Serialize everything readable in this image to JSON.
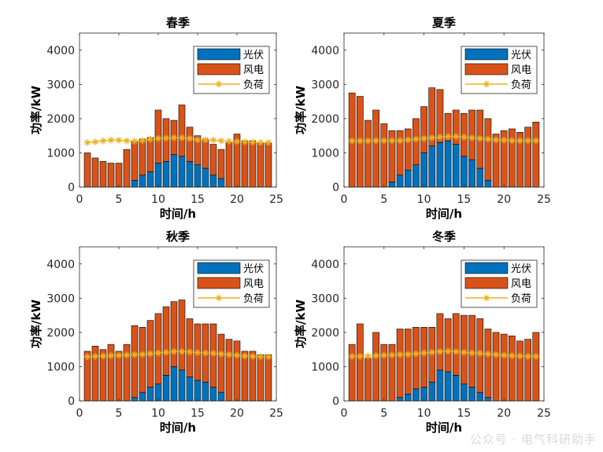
{
  "chart_data": [
    {
      "type": "bar",
      "title": "春季",
      "xlabel": "时间/h",
      "ylabel": "功率/kW",
      "xlim": [
        0,
        25
      ],
      "ylim": [
        0,
        4500
      ],
      "xticks": [
        0,
        5,
        10,
        15,
        20,
        25
      ],
      "yticks": [
        0,
        1000,
        2000,
        3000,
        4000
      ],
      "legend": "top-right",
      "x": [
        1,
        2,
        3,
        4,
        5,
        6,
        7,
        8,
        9,
        10,
        11,
        12,
        13,
        14,
        15,
        16,
        17,
        18,
        19,
        20,
        21,
        22,
        23,
        24
      ],
      "series": [
        {
          "name": "光伏",
          "kind": "stacked-bar",
          "color": "#0072BD",
          "values": [
            0,
            0,
            0,
            0,
            0,
            0,
            200,
            350,
            450,
            700,
            750,
            950,
            900,
            750,
            650,
            550,
            350,
            250,
            0,
            0,
            0,
            0,
            0,
            0
          ]
        },
        {
          "name": "风电",
          "kind": "stacked-bar",
          "color": "#D95319",
          "values": [
            1000,
            850,
            750,
            700,
            700,
            1100,
            1150,
            1050,
            1000,
            1550,
            1250,
            1000,
            1500,
            1000,
            850,
            850,
            900,
            850,
            1300,
            1550,
            1350,
            1350,
            1300,
            1300
          ]
        },
        {
          "name": "负荷",
          "kind": "line",
          "color": "#EDB120",
          "marker": "star",
          "values": [
            1300,
            1320,
            1350,
            1370,
            1370,
            1350,
            1340,
            1360,
            1400,
            1420,
            1430,
            1440,
            1440,
            1420,
            1380,
            1380,
            1370,
            1350,
            1340,
            1330,
            1320,
            1310,
            1300,
            1300
          ]
        }
      ]
    },
    {
      "type": "bar",
      "title": "夏季",
      "xlabel": "时间/h",
      "ylabel": "功率/kW",
      "xlim": [
        0,
        25
      ],
      "ylim": [
        0,
        4500
      ],
      "xticks": [
        0,
        5,
        10,
        15,
        20,
        25
      ],
      "yticks": [
        0,
        1000,
        2000,
        3000,
        4000
      ],
      "legend": "top-right",
      "x": [
        1,
        2,
        3,
        4,
        5,
        6,
        7,
        8,
        9,
        10,
        11,
        12,
        13,
        14,
        15,
        16,
        17,
        18,
        19,
        20,
        21,
        22,
        23,
        24
      ],
      "series": [
        {
          "name": "光伏",
          "kind": "stacked-bar",
          "color": "#0072BD",
          "values": [
            0,
            0,
            0,
            0,
            0,
            150,
            350,
            500,
            650,
            1000,
            1200,
            1300,
            1350,
            1250,
            900,
            800,
            550,
            200,
            0,
            0,
            0,
            0,
            0,
            0
          ]
        },
        {
          "name": "风电",
          "kind": "stacked-bar",
          "color": "#D95319",
          "values": [
            2750,
            2650,
            1950,
            2250,
            1850,
            1500,
            1300,
            1200,
            1350,
            1350,
            1700,
            1550,
            800,
            1000,
            1250,
            1450,
            1700,
            1800,
            1550,
            1650,
            1700,
            1600,
            1750,
            1900
          ]
        },
        {
          "name": "负荷",
          "kind": "line",
          "color": "#EDB120",
          "marker": "star",
          "values": [
            1350,
            1350,
            1350,
            1360,
            1360,
            1360,
            1360,
            1380,
            1400,
            1420,
            1440,
            1460,
            1480,
            1480,
            1460,
            1440,
            1420,
            1400,
            1380,
            1370,
            1360,
            1360,
            1360,
            1360
          ]
        }
      ]
    },
    {
      "type": "bar",
      "title": "秋季",
      "xlabel": "时间/h",
      "ylabel": "功率/kW",
      "xlim": [
        0,
        25
      ],
      "ylim": [
        0,
        4500
      ],
      "xticks": [
        0,
        5,
        10,
        15,
        20,
        25
      ],
      "yticks": [
        0,
        1000,
        2000,
        3000,
        4000
      ],
      "legend": "top-right",
      "x": [
        1,
        2,
        3,
        4,
        5,
        6,
        7,
        8,
        9,
        10,
        11,
        12,
        13,
        14,
        15,
        16,
        17,
        18,
        19,
        20,
        21,
        22,
        23,
        24
      ],
      "series": [
        {
          "name": "光伏",
          "kind": "stacked-bar",
          "color": "#0072BD",
          "values": [
            0,
            0,
            0,
            0,
            0,
            0,
            100,
            250,
            400,
            500,
            750,
            1000,
            900,
            700,
            600,
            550,
            400,
            250,
            0,
            0,
            0,
            0,
            0,
            0
          ]
        },
        {
          "name": "风电",
          "kind": "stacked-bar",
          "color": "#D95319",
          "values": [
            1450,
            1600,
            1500,
            1650,
            1450,
            1650,
            2100,
            1900,
            1950,
            2050,
            2000,
            1900,
            2050,
            1700,
            1650,
            1700,
            1850,
            1700,
            1800,
            1750,
            1450,
            1450,
            1350,
            1350
          ]
        },
        {
          "name": "负荷",
          "kind": "line",
          "color": "#EDB120",
          "marker": "star",
          "values": [
            1290,
            1300,
            1310,
            1320,
            1330,
            1340,
            1350,
            1360,
            1380,
            1400,
            1420,
            1440,
            1440,
            1430,
            1410,
            1400,
            1390,
            1370,
            1350,
            1330,
            1310,
            1300,
            1290,
            1290
          ]
        }
      ]
    },
    {
      "type": "bar",
      "title": "冬季",
      "xlabel": "时间/h",
      "ylabel": "功率/kW",
      "xlim": [
        0,
        25
      ],
      "ylim": [
        0,
        4500
      ],
      "xticks": [
        0,
        5,
        10,
        15,
        20,
        25
      ],
      "yticks": [
        0,
        1000,
        2000,
        3000,
        4000
      ],
      "legend": "top-right",
      "x": [
        1,
        2,
        3,
        4,
        5,
        6,
        7,
        8,
        9,
        10,
        11,
        12,
        13,
        14,
        15,
        16,
        17,
        18,
        19,
        20,
        21,
        22,
        23,
        24
      ],
      "series": [
        {
          "name": "光伏",
          "kind": "stacked-bar",
          "color": "#0072BD",
          "values": [
            0,
            0,
            0,
            0,
            0,
            0,
            100,
            200,
            350,
            400,
            550,
            900,
            850,
            750,
            500,
            400,
            250,
            100,
            0,
            0,
            0,
            0,
            0,
            0
          ]
        },
        {
          "name": "风电",
          "kind": "stacked-bar",
          "color": "#D95319",
          "values": [
            1650,
            2250,
            1250,
            2000,
            1650,
            1650,
            2000,
            1900,
            1800,
            1750,
            1600,
            1650,
            1550,
            1800,
            2000,
            2100,
            2150,
            2000,
            2000,
            1950,
            1900,
            1750,
            1800,
            2000
          ]
        },
        {
          "name": "负荷",
          "kind": "line",
          "color": "#EDB120",
          "marker": "star",
          "values": [
            1300,
            1300,
            1310,
            1320,
            1330,
            1340,
            1350,
            1360,
            1380,
            1400,
            1420,
            1440,
            1450,
            1440,
            1420,
            1400,
            1390,
            1370,
            1350,
            1330,
            1320,
            1310,
            1300,
            1300
          ]
        }
      ]
    }
  ],
  "watermark": "公众号 · 电气科研助手"
}
